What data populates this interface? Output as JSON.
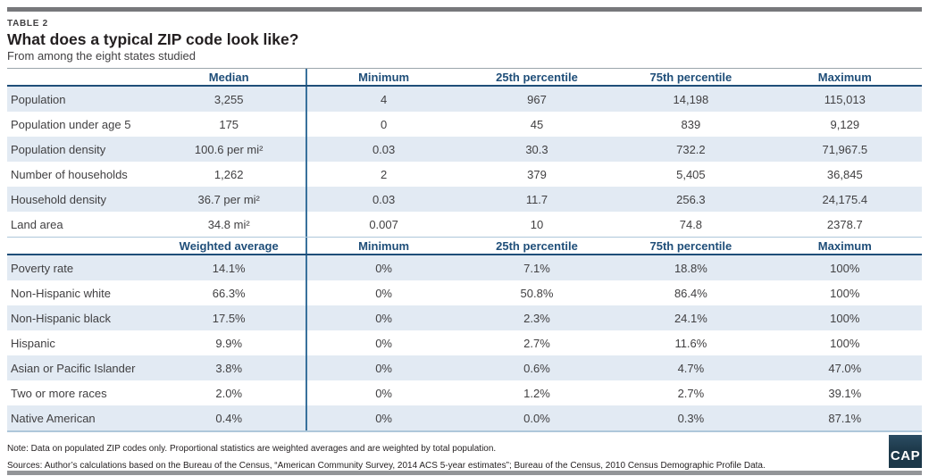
{
  "header": {
    "kicker": "TABLE 2",
    "title": "What does a typical ZIP code look like?",
    "subtitle": "From among the eight states studied"
  },
  "chart_data": [
    {
      "type": "table",
      "title": "What does a typical ZIP code look like?",
      "subtitle": "From among the eight states studied",
      "columns": [
        "",
        "Median",
        "Minimum",
        "25th percentile",
        "75th percentile",
        "Maximum"
      ],
      "rows": [
        {
          "label": "Population",
          "values": [
            "3,255",
            "4",
            "967",
            "14,198",
            "115,013"
          ]
        },
        {
          "label": "Population under age 5",
          "values": [
            "175",
            "0",
            "45",
            "839",
            "9,129"
          ]
        },
        {
          "label": "Population density",
          "values": [
            "100.6 per mi²",
            "0.03",
            "30.3",
            "732.2",
            "71,967.5"
          ]
        },
        {
          "label": "Number of households",
          "values": [
            "1,262",
            "2",
            "379",
            "5,405",
            "36,845"
          ]
        },
        {
          "label": "Household density",
          "values": [
            "36.7 per mi²",
            "0.03",
            "11.7",
            "256.3",
            "24,175.4"
          ]
        },
        {
          "label": "Land area",
          "values": [
            "34.8 mi²",
            "0.007",
            "10",
            "74.8",
            "2378.7"
          ]
        }
      ]
    },
    {
      "type": "table",
      "columns": [
        "",
        "Weighted average",
        "Minimum",
        "25th percentile",
        "75th percentile",
        "Maximum"
      ],
      "rows": [
        {
          "label": "Poverty rate",
          "values": [
            "14.1%",
            "0%",
            "7.1%",
            "18.8%",
            "100%"
          ]
        },
        {
          "label": "Non-Hispanic white",
          "values": [
            "66.3%",
            "0%",
            "50.8%",
            "86.4%",
            "100%"
          ]
        },
        {
          "label": "Non-Hispanic black",
          "values": [
            "17.5%",
            "0%",
            "2.3%",
            "24.1%",
            "100%"
          ]
        },
        {
          "label": "Hispanic",
          "values": [
            "9.9%",
            "0%",
            "2.7%",
            "11.6%",
            "100%"
          ]
        },
        {
          "label": "Asian or Pacific Islander",
          "values": [
            "3.8%",
            "0%",
            "0.6%",
            "4.7%",
            "47.0%"
          ]
        },
        {
          "label": "Two or more races",
          "values": [
            "2.0%",
            "0%",
            "1.2%",
            "2.7%",
            "39.1%"
          ]
        },
        {
          "label": "Native American",
          "values": [
            "0.4%",
            "0%",
            "0.0%",
            "0.3%",
            "87.1%"
          ]
        }
      ]
    }
  ],
  "footer": {
    "note": "Note: Data on populated ZIP codes only. Proportional statistics are weighted averages and are weighted by total population.",
    "sources": "Sources: Author’s calculations based on the Bureau of the Census, “American Community Survey, 2014 ACS 5-year estimates”; Bureau of the Census, 2010 Census Demographic Profile Data.",
    "logo_text": "CAP"
  },
  "colors": {
    "header_text": "#1f4e79",
    "row_shade": "#e2eaf3",
    "column_divider": "#39719c",
    "top_bar": "#77787b",
    "bottom_bar": "#939598",
    "logo_background": "#1c3849"
  }
}
